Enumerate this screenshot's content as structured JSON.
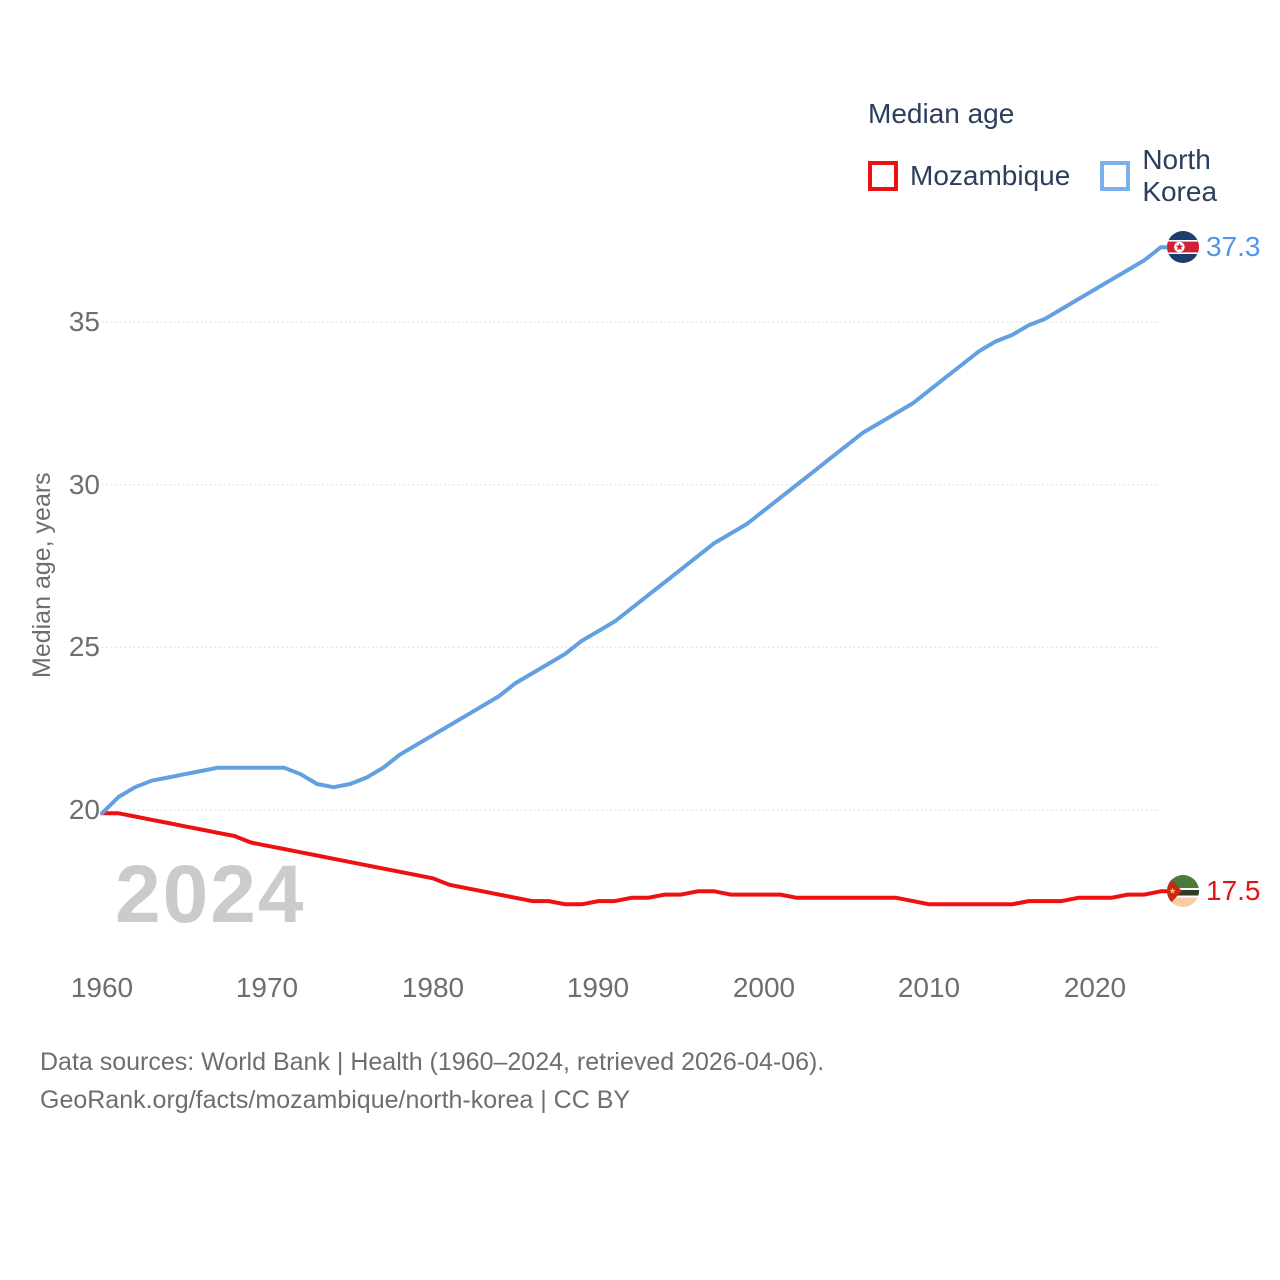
{
  "legend": {
    "title": "Median age",
    "items": [
      {
        "label": "Mozambique",
        "color": "#ee1111"
      },
      {
        "label": "North Korea",
        "color": "#7ab1e8"
      }
    ]
  },
  "y_axis": {
    "title": "Median age, years",
    "ticks": [
      "35",
      "30",
      "25",
      "20"
    ]
  },
  "x_axis": {
    "ticks": [
      "1960",
      "1970",
      "1980",
      "1990",
      "2000",
      "2010",
      "2020"
    ]
  },
  "end_labels": {
    "north_korea": "37.3",
    "mozambique": "17.5"
  },
  "watermark": {
    "text": "2024"
  },
  "footer": {
    "line1": "Data sources: World Bank | Health (1960–2024, retrieved 2026-04-06).",
    "line2": "GeoRank.org/facts/mozambique/north-korea | CC BY"
  },
  "chart_data": {
    "type": "line",
    "title": "Median age",
    "ylabel": "Median age, years",
    "xlabel": "",
    "x_range": [
      1960,
      2024
    ],
    "ylim": [
      16.5,
      38.5
    ],
    "y_ticks": [
      20,
      25,
      30,
      35
    ],
    "x_ticks": [
      1960,
      1970,
      1980,
      1990,
      2000,
      2010,
      2020
    ],
    "grid": "horizontal-dotted",
    "legend_position": "top-right",
    "years": [
      1960,
      1961,
      1962,
      1963,
      1964,
      1965,
      1966,
      1967,
      1968,
      1969,
      1970,
      1971,
      1972,
      1973,
      1974,
      1975,
      1976,
      1977,
      1978,
      1979,
      1980,
      1981,
      1982,
      1983,
      1984,
      1985,
      1986,
      1987,
      1988,
      1989,
      1990,
      1991,
      1992,
      1993,
      1994,
      1995,
      1996,
      1997,
      1998,
      1999,
      2000,
      2001,
      2002,
      2003,
      2004,
      2005,
      2006,
      2007,
      2008,
      2009,
      2010,
      2011,
      2012,
      2013,
      2014,
      2015,
      2016,
      2017,
      2018,
      2019,
      2020,
      2021,
      2022,
      2023,
      2024
    ],
    "series": [
      {
        "name": "Mozambique",
        "color": "#ee1111",
        "end_value": 17.5,
        "values": [
          19.9,
          19.9,
          19.8,
          19.7,
          19.6,
          19.5,
          19.4,
          19.3,
          19.2,
          19.0,
          18.9,
          18.8,
          18.7,
          18.6,
          18.5,
          18.4,
          18.3,
          18.2,
          18.1,
          18.0,
          17.9,
          17.7,
          17.6,
          17.5,
          17.4,
          17.3,
          17.2,
          17.2,
          17.1,
          17.1,
          17.2,
          17.2,
          17.3,
          17.3,
          17.4,
          17.4,
          17.5,
          17.5,
          17.4,
          17.4,
          17.4,
          17.4,
          17.3,
          17.3,
          17.3,
          17.3,
          17.3,
          17.3,
          17.3,
          17.2,
          17.1,
          17.1,
          17.1,
          17.1,
          17.1,
          17.1,
          17.2,
          17.2,
          17.2,
          17.3,
          17.3,
          17.3,
          17.4,
          17.4,
          17.5
        ]
      },
      {
        "name": "North Korea",
        "color": "#62a0e2",
        "end_value": 37.3,
        "values": [
          19.9,
          20.4,
          20.7,
          20.9,
          21.0,
          21.1,
          21.2,
          21.3,
          21.3,
          21.3,
          21.3,
          21.3,
          21.1,
          20.8,
          20.7,
          20.8,
          21.0,
          21.3,
          21.7,
          22.0,
          22.3,
          22.6,
          22.9,
          23.2,
          23.5,
          23.9,
          24.2,
          24.5,
          24.8,
          25.2,
          25.5,
          25.8,
          26.2,
          26.6,
          27.0,
          27.4,
          27.8,
          28.2,
          28.5,
          28.8,
          29.2,
          29.6,
          30.0,
          30.4,
          30.8,
          31.2,
          31.6,
          31.9,
          32.2,
          32.5,
          32.9,
          33.3,
          33.7,
          34.1,
          34.4,
          34.6,
          34.9,
          35.1,
          35.4,
          35.7,
          36.0,
          36.3,
          36.6,
          36.9,
          37.3
        ]
      }
    ]
  }
}
